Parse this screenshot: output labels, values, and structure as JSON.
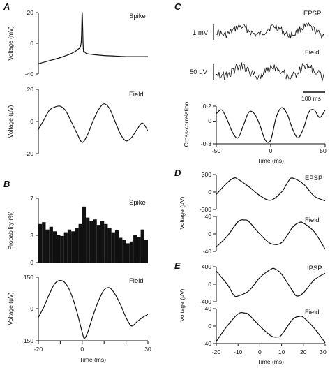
{
  "panels": {
    "A": {
      "letter": "A",
      "spike": {
        "label": "Spike",
        "ylabel": "Voltage (mV)",
        "yticks": [
          "20",
          "0",
          "-40"
        ]
      },
      "field": {
        "label": "Field",
        "ylabel": "Voltage (μV)",
        "yticks": [
          "20",
          "0",
          "-20"
        ]
      }
    },
    "B": {
      "letter": "B",
      "hist": {
        "label": "Spike",
        "ylabel": "Probability (%)",
        "yticks": [
          "7",
          "3",
          "0"
        ]
      },
      "field": {
        "label": "Field",
        "ylabel": "Voltage (μV)",
        "yticks": [
          "150",
          "0",
          "-150"
        ]
      },
      "xticks": [
        "-20",
        "-10",
        "0",
        "10",
        "20",
        "30"
      ],
      "xlabel": "Time (ms)"
    },
    "C": {
      "letter": "C",
      "epsp_label": "EPSP",
      "field_label": "Field",
      "scale_epsp": "1 mV",
      "scale_field": "50 μV",
      "scale_time": "100 ms",
      "cc": {
        "ylabel": "Cross-correlation",
        "yticks": [
          "0·2",
          "0",
          "-0·3"
        ]
      },
      "xticks": [
        "-50",
        "0",
        "50"
      ],
      "xlabel": "Time (ms)"
    },
    "D": {
      "letter": "D",
      "epsp": {
        "label": "EPSP",
        "yticks": [
          "300",
          "0",
          "-300"
        ]
      },
      "field": {
        "label": "Field",
        "yticks": [
          "40",
          "0",
          "-40"
        ]
      },
      "ylabel": "Voltage (μV)"
    },
    "E": {
      "letter": "E",
      "ipsp": {
        "label": "IPSP",
        "yticks": [
          "400",
          "0",
          "-400"
        ]
      },
      "field": {
        "label": "Field",
        "yticks": [
          "40",
          "0",
          "-40"
        ]
      },
      "ylabel": "Voltage (μV)",
      "xticks": [
        "-20",
        "-10",
        "0",
        "10",
        "20",
        "30"
      ],
      "xlabel": "Time (ms)"
    }
  },
  "chart_data": [
    {
      "type": "line",
      "panel": "A",
      "name": "Spike",
      "ylabel": "Voltage (mV)",
      "ylim": [
        -40,
        20
      ],
      "xlim": [
        -20,
        30
      ],
      "x": [
        -20,
        -15,
        -10,
        -5,
        -2,
        -0.5,
        0,
        0.5,
        1,
        2,
        5,
        10,
        15,
        20,
        25,
        30
      ],
      "y": [
        -30,
        -27,
        -24,
        -20,
        -16,
        -10,
        20,
        -15,
        -18,
        -20,
        -21,
        -22,
        -22.5,
        -23,
        -23,
        -23
      ]
    },
    {
      "type": "line",
      "panel": "A",
      "name": "Field",
      "ylabel": "Voltage (μV)",
      "ylim": [
        -20,
        20
      ],
      "xlim": [
        -20,
        30
      ],
      "x": [
        -20,
        -17.5,
        -15,
        -12.5,
        -10,
        -7.5,
        -5,
        -2.5,
        0,
        2.5,
        5,
        7.5,
        10,
        12.5,
        15,
        17.5,
        20,
        22.5,
        25,
        27.5,
        30
      ],
      "y": [
        -5,
        1,
        7,
        9,
        9.5,
        6.6,
        0,
        -7,
        -13,
        -8,
        0.5,
        7.5,
        11,
        8,
        0,
        -8,
        -12,
        -10,
        -5,
        -1,
        -6
      ]
    },
    {
      "type": "bar",
      "panel": "B",
      "name": "Spike",
      "ylabel": "Probability (%)",
      "ylim": [
        0,
        7
      ],
      "xlim": [
        -20,
        30
      ],
      "bin_start": -20,
      "bin_width": 1.667,
      "values": [
        4.2,
        4.4,
        3.6,
        3.9,
        3.4,
        3.0,
        2.9,
        3.3,
        3.6,
        3.4,
        3.8,
        4.2,
        6.1,
        4.9,
        4.5,
        4.7,
        4.1,
        4.5,
        4.2,
        3.8,
        3.3,
        3.5,
        2.7,
        2.5,
        2.1,
        2.3,
        3.0,
        2.8,
        3.6,
        2.5,
        4.4
      ]
    },
    {
      "type": "line",
      "panel": "B",
      "name": "Field",
      "xlabel": "Time (ms)",
      "ylabel": "Voltage (μV)",
      "ylim": [
        -150,
        150
      ],
      "xlim": [
        -20,
        30
      ],
      "x": [
        -20,
        -17.5,
        -15,
        -12.5,
        -10,
        -7.5,
        -5,
        -2.5,
        0,
        1,
        2.5,
        5,
        7.5,
        10,
        12.5,
        15,
        17.5,
        20,
        22.5,
        25,
        27.5,
        30
      ],
      "y": [
        -40,
        10,
        70,
        120,
        135,
        120,
        70,
        -10,
        -110,
        -138,
        -110,
        -30,
        40,
        90,
        100,
        70,
        20,
        -40,
        -80,
        -60,
        -40,
        -25
      ]
    },
    {
      "type": "line",
      "panel": "C",
      "name": "Cross-correlation",
      "xlabel": "Time (ms)",
      "ylabel": "Cross-correlation",
      "ylim": [
        -0.3,
        0.2
      ],
      "xlim": [
        -50,
        50
      ],
      "x": [
        -50,
        -45,
        -40,
        -35,
        -30,
        -25,
        -20,
        -15,
        -10,
        -5,
        0,
        5,
        10,
        15,
        20,
        25,
        30,
        35,
        40,
        45,
        50
      ],
      "y": [
        0.1,
        0.15,
        0.02,
        -0.15,
        -0.22,
        -0.05,
        0.12,
        0.1,
        -0.05,
        -0.25,
        -0.25,
        0.05,
        0.18,
        0.1,
        -0.1,
        -0.22,
        -0.1,
        0.12,
        0.15,
        0.05,
        0.15
      ]
    },
    {
      "type": "line",
      "panel": "D",
      "name": "EPSP",
      "ylabel": "Voltage (μV)",
      "ylim": [
        -300,
        300
      ],
      "xlim": [
        -20,
        30
      ],
      "x": [
        -20,
        -15,
        -12,
        -10,
        -5,
        0,
        5,
        10,
        13,
        15,
        20,
        25,
        30
      ],
      "y": [
        -40,
        160,
        240,
        220,
        90,
        -60,
        -140,
        0,
        180,
        240,
        140,
        -70,
        -150
      ]
    },
    {
      "type": "line",
      "panel": "D",
      "name": "Field",
      "ylabel": "Voltage (μV)",
      "ylim": [
        -40,
        40
      ],
      "xlim": [
        -20,
        30
      ],
      "x": [
        -20,
        -15,
        -10,
        -7,
        -5,
        0,
        5,
        10,
        15,
        18,
        20,
        25,
        30
      ],
      "y": [
        -30,
        -5,
        28,
        32,
        28,
        0,
        -22,
        -20,
        15,
        26,
        25,
        5,
        -35
      ]
    },
    {
      "type": "line",
      "panel": "E",
      "name": "IPSP",
      "ylabel": "Voltage (μV)",
      "ylim": [
        -400,
        400
      ],
      "xlim": [
        -20,
        30
      ],
      "x": [
        -20,
        -15,
        -12,
        -10,
        -5,
        0,
        5,
        7,
        10,
        15,
        17,
        20,
        25,
        30
      ],
      "y": [
        300,
        0,
        -250,
        -270,
        -150,
        150,
        340,
        350,
        230,
        -150,
        -270,
        -200,
        100,
        250
      ]
    },
    {
      "type": "line",
      "panel": "E",
      "name": "Field",
      "xlabel": "Time (ms)",
      "ylabel": "Voltage (μV)",
      "ylim": [
        -40,
        40
      ],
      "xlim": [
        -20,
        30
      ],
      "x": [
        -20,
        -15,
        -10,
        -7,
        -5,
        0,
        5,
        8,
        10,
        15,
        18,
        20,
        25,
        30
      ],
      "y": [
        -35,
        0,
        28,
        30,
        26,
        0,
        -22,
        -25,
        -20,
        15,
        22,
        20,
        -5,
        -38
      ]
    }
  ]
}
